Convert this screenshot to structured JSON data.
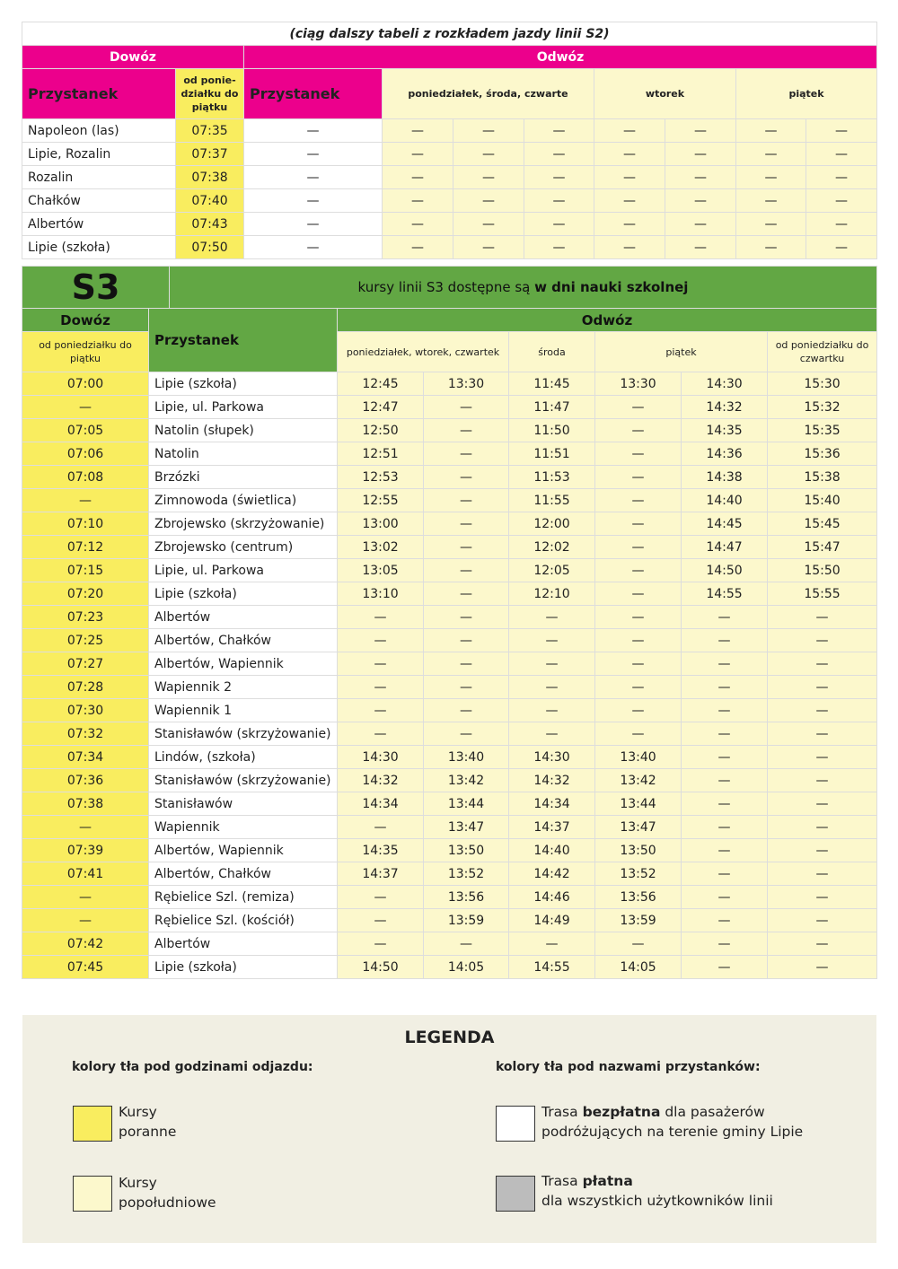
{
  "s2": {
    "caption": "(ciąg dalszy tabeli z rozkładem jazdy linii S2)",
    "dowoz": "Dowóz",
    "odwoz": "Odwóz",
    "stop_header": "Przystanek",
    "dowoz_days": "od ponie-działku do piątku",
    "odwoz_stop_header": "Przystanek",
    "day_groups": [
      "poniedziałek, środa, czwarte",
      "wtorek",
      "piątek"
    ],
    "rows": [
      {
        "stop": "Napoleon (las)",
        "time": "07:35"
      },
      {
        "stop": "Lipie, Rozalin",
        "time": "07:37"
      },
      {
        "stop": "Rozalin",
        "time": "07:38"
      },
      {
        "stop": "Chałków",
        "time": "07:40"
      },
      {
        "stop": "Albertów",
        "time": "07:43"
      },
      {
        "stop": "Lipie (szkoła)",
        "time": "07:50"
      }
    ],
    "empty": "—"
  },
  "s3": {
    "line": "S3",
    "note_prefix": "kursy linii S3 dostępne są ",
    "note_bold": "w dni nauki szkolnej",
    "dowoz": "Dowóz",
    "odwoz": "Odwóz",
    "stop_header": "Przystanek",
    "dowoz_days": "od poniedziałku do piątku",
    "day_groups": [
      "poniedziałek, wtorek, czwartek",
      "środa",
      "piątek",
      "od poniedziałku do czwartku"
    ],
    "rows": [
      [
        "07:00",
        "Lipie (szkoła)",
        "12:45",
        "13:30",
        "11:45",
        "13:30",
        "14:30",
        "15:30"
      ],
      [
        "—",
        "Lipie, ul. Parkowa",
        "12:47",
        "—",
        "11:47",
        "—",
        "14:32",
        "15:32"
      ],
      [
        "07:05",
        "Natolin (słupek)",
        "12:50",
        "—",
        "11:50",
        "—",
        "14:35",
        "15:35"
      ],
      [
        "07:06",
        "Natolin",
        "12:51",
        "—",
        "11:51",
        "—",
        "14:36",
        "15:36"
      ],
      [
        "07:08",
        "Brzózki",
        "12:53",
        "—",
        "11:53",
        "—",
        "14:38",
        "15:38"
      ],
      [
        "—",
        "Zimnowoda (świetlica)",
        "12:55",
        "—",
        "11:55",
        "—",
        "14:40",
        "15:40"
      ],
      [
        "07:10",
        "Zbrojewsko (skrzyżowanie)",
        "13:00",
        "—",
        "12:00",
        "—",
        "14:45",
        "15:45"
      ],
      [
        "07:12",
        "Zbrojewsko (centrum)",
        "13:02",
        "—",
        "12:02",
        "—",
        "14:47",
        "15:47"
      ],
      [
        "07:15",
        "Lipie, ul. Parkowa",
        "13:05",
        "—",
        "12:05",
        "—",
        "14:50",
        "15:50"
      ],
      [
        "07:20",
        "Lipie (szkoła)",
        "13:10",
        "—",
        "12:10",
        "—",
        "14:55",
        "15:55"
      ],
      [
        "07:23",
        "Albertów",
        "—",
        "—",
        "—",
        "—",
        "—",
        "—"
      ],
      [
        "07:25",
        "Albertów, Chałków",
        "—",
        "—",
        "—",
        "—",
        "—",
        "—"
      ],
      [
        "07:27",
        "Albertów, Wapiennik",
        "—",
        "—",
        "—",
        "—",
        "—",
        "—"
      ],
      [
        "07:28",
        "Wapiennik 2",
        "—",
        "—",
        "—",
        "—",
        "—",
        "—"
      ],
      [
        "07:30",
        "Wapiennik 1",
        "—",
        "—",
        "—",
        "—",
        "—",
        "—"
      ],
      [
        "07:32",
        "Stanisławów (skrzyżowanie)",
        "—",
        "—",
        "—",
        "—",
        "—",
        "—"
      ],
      [
        "07:34",
        "Lindów, (szkoła)",
        "14:30",
        "13:40",
        "14:30",
        "13:40",
        "—",
        "—"
      ],
      [
        "07:36",
        "Stanisławów (skrzyżowanie)",
        "14:32",
        "13:42",
        "14:32",
        "13:42",
        "—",
        "—"
      ],
      [
        "07:38",
        "Stanisławów",
        "14:34",
        "13:44",
        "14:34",
        "13:44",
        "—",
        "—"
      ],
      [
        "—",
        "Wapiennik",
        "—",
        "13:47",
        "14:37",
        "13:47",
        "—",
        "—"
      ],
      [
        "07:39",
        "Albertów, Wapiennik",
        "14:35",
        "13:50",
        "14:40",
        "13:50",
        "—",
        "—"
      ],
      [
        "07:41",
        "Albertów, Chałków",
        "14:37",
        "13:52",
        "14:42",
        "13:52",
        "—",
        "—"
      ],
      [
        "—",
        "Rębielice Szl. (remiza)",
        "—",
        "13:56",
        "14:46",
        "13:56",
        "—",
        "—"
      ],
      [
        "—",
        "Rębielice Szl. (kościół)",
        "—",
        "13:59",
        "14:49",
        "13:59",
        "—",
        "—"
      ],
      [
        "07:42",
        "Albertów",
        "—",
        "—",
        "—",
        "—",
        "—",
        "—"
      ],
      [
        "07:45",
        "Lipie (szkoła)",
        "14:50",
        "14:05",
        "14:55",
        "14:05",
        "—",
        "—"
      ]
    ]
  },
  "legend": {
    "title": "LEGENDA",
    "left_header": "kolory tła pod godzinami odjazdu:",
    "right_header": "kolory tła pod nazwami przystanków:",
    "morning": [
      "Kursy",
      "poranne"
    ],
    "afternoon": [
      "Kursy",
      "popołudniowe"
    ],
    "free": {
      "pre": "Trasa ",
      "bold": "bezpłatna",
      "post": " dla pasażerów",
      "line2": "podróżujących na terenie gminy Lipie"
    },
    "paid": {
      "pre": "Trasa ",
      "bold": "płatna",
      "line2": "dla wszystkich użytkowników linii"
    }
  },
  "colors": {
    "magenta": "#ec008c",
    "yellow": "#f9ed5f",
    "pale_yellow": "#fcf8cc",
    "green": "#62a744",
    "grey": "#bcbcbc",
    "legend_bg": "#f1efe3"
  }
}
